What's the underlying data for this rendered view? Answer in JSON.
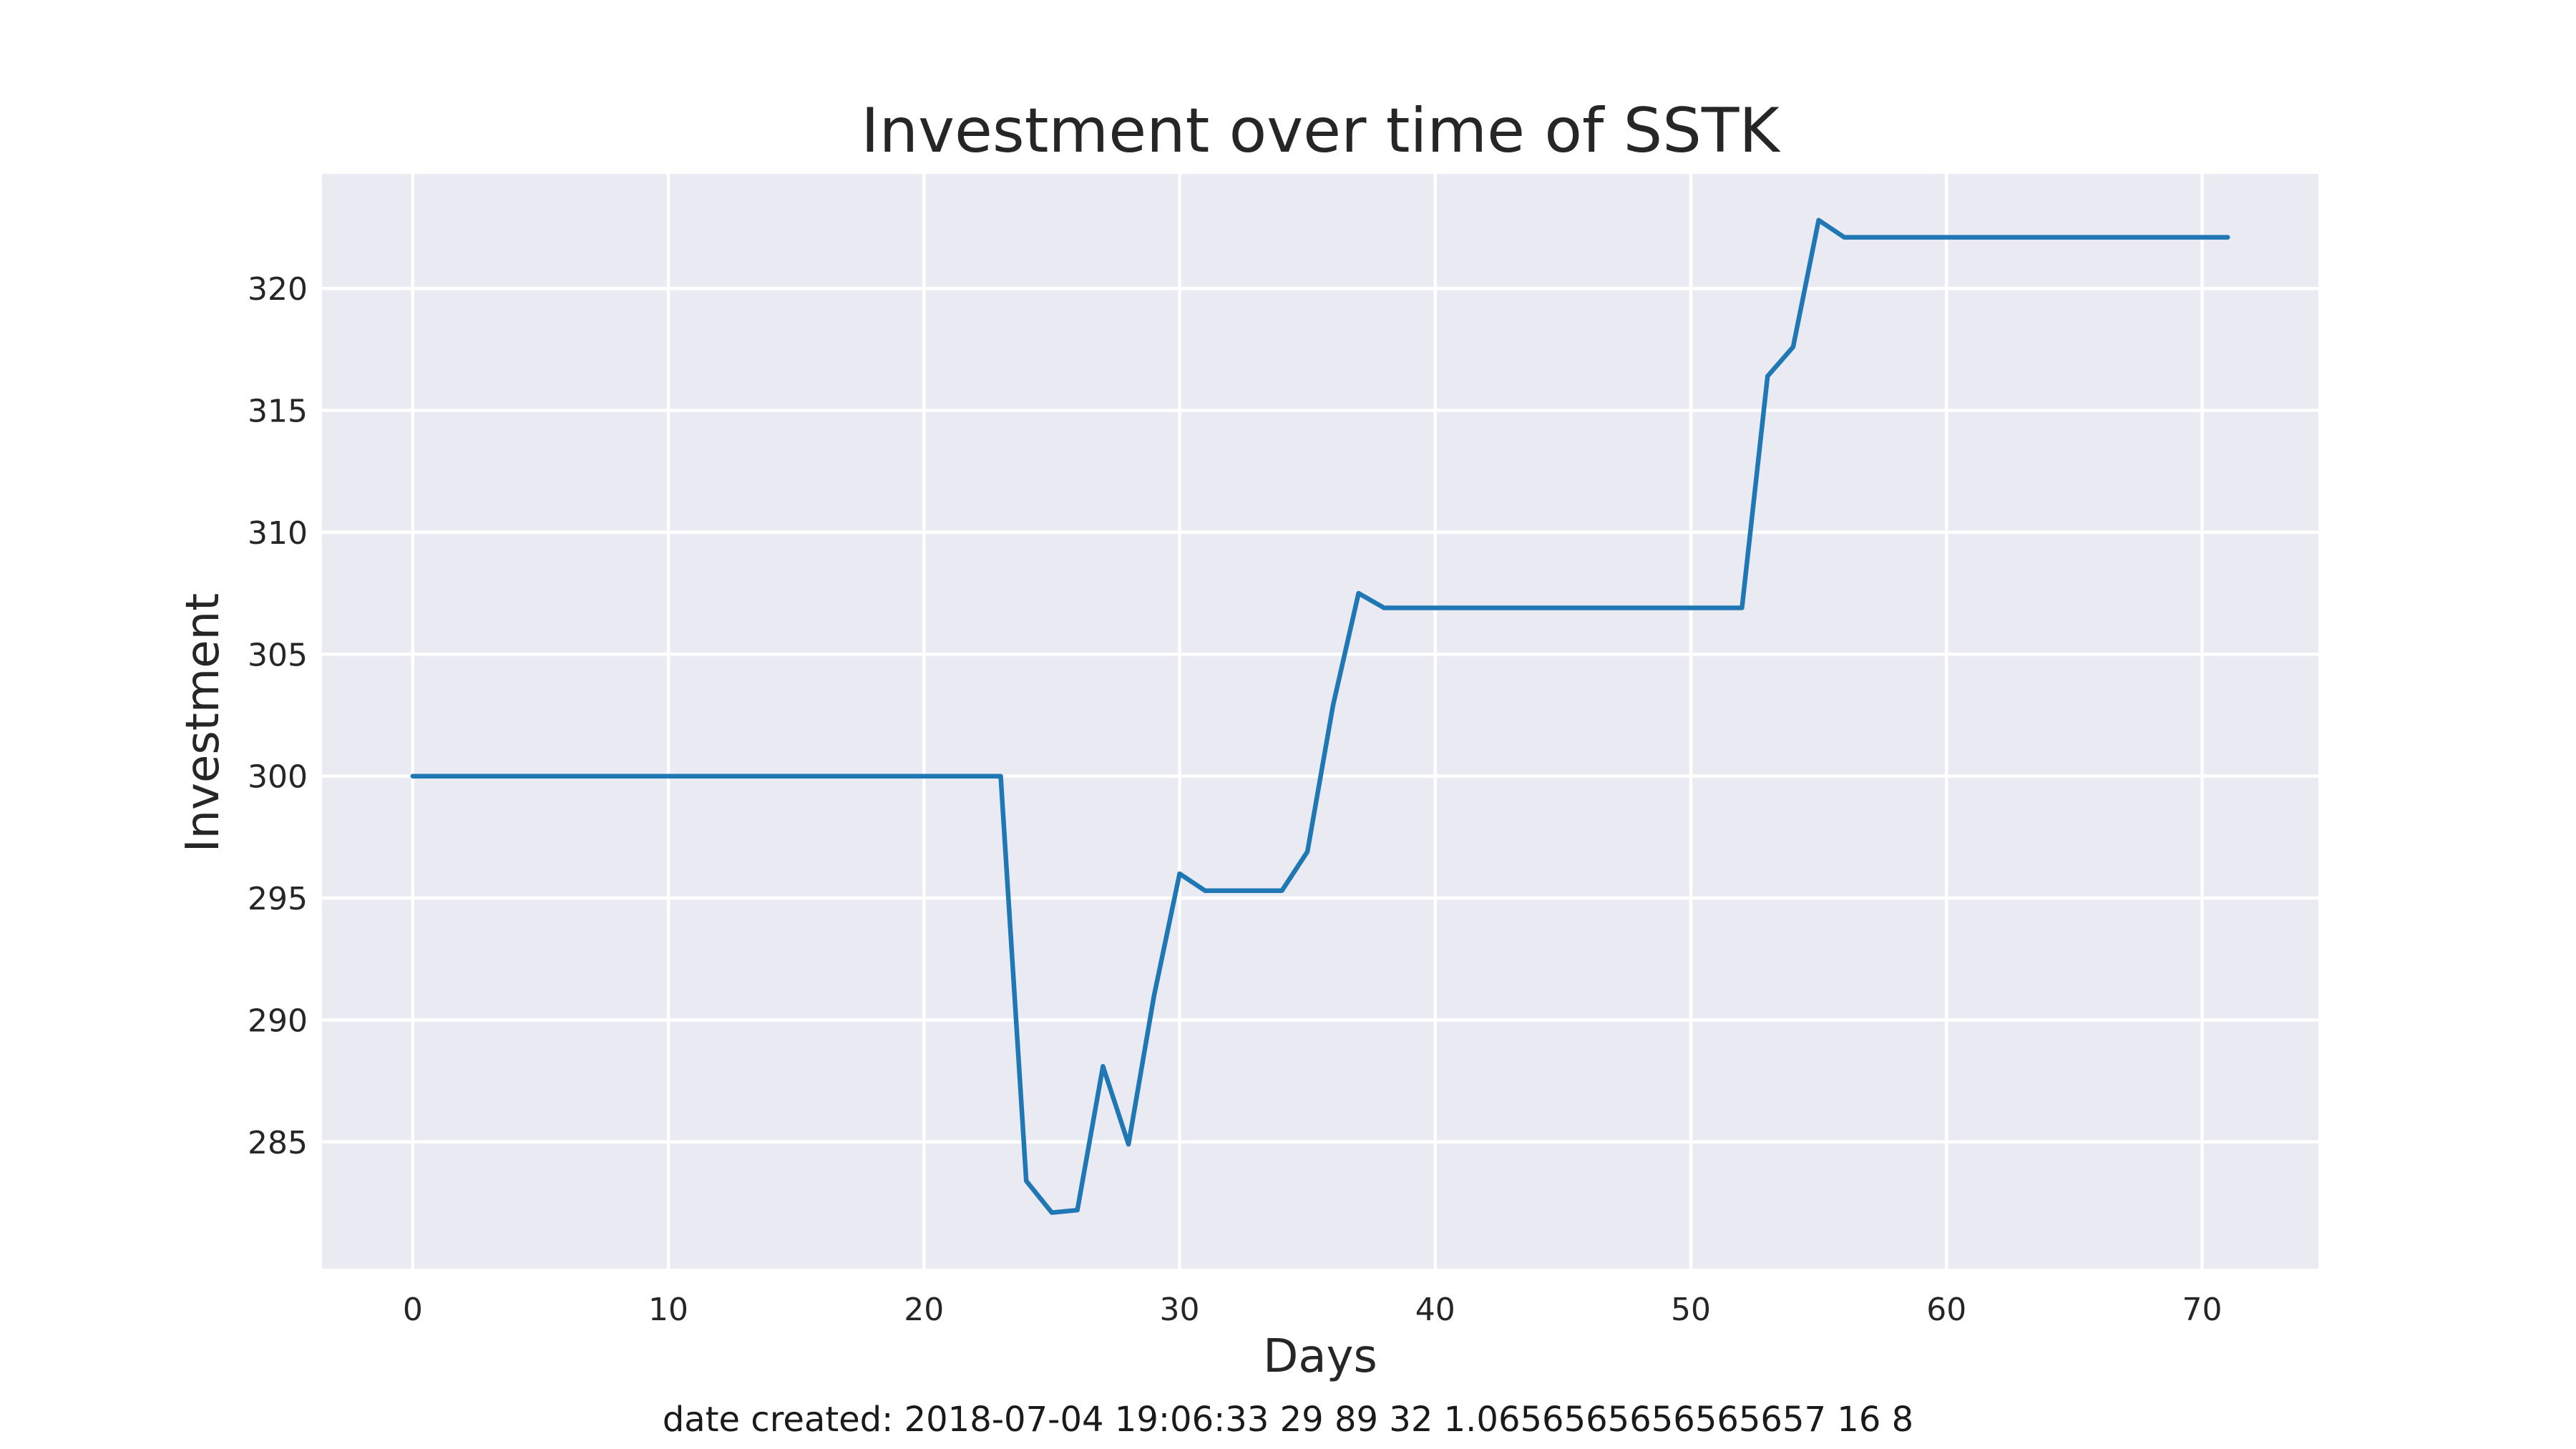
{
  "chart_data": {
    "type": "line",
    "title": "Investment over time of SSTK",
    "xlabel": "Days",
    "ylabel": "Investment",
    "footer": "date created: 2018-07-04 19:06:33 29 89 32 1.0656565656565657 16 8",
    "xlim": [
      -3.55,
      74.55
    ],
    "ylim": [
      279.8,
      324.7
    ],
    "x_ticks": [
      0,
      10,
      20,
      30,
      40,
      50,
      60,
      70
    ],
    "y_ticks": [
      285,
      290,
      295,
      300,
      305,
      310,
      315,
      320
    ],
    "grid": true,
    "legend": "none",
    "series": [
      {
        "color": "#1f77b4",
        "x": [
          0,
          1,
          2,
          3,
          4,
          5,
          6,
          7,
          8,
          9,
          10,
          11,
          12,
          13,
          14,
          15,
          16,
          17,
          18,
          19,
          20,
          21,
          22,
          23,
          24,
          25,
          26,
          27,
          28,
          29,
          30,
          31,
          32,
          33,
          34,
          35,
          36,
          37,
          38,
          39,
          40,
          41,
          42,
          43,
          44,
          45,
          46,
          47,
          48,
          49,
          50,
          51,
          52,
          53,
          54,
          55,
          56,
          57,
          58,
          59,
          60,
          61,
          62,
          63,
          64,
          65,
          66,
          67,
          68,
          69,
          70,
          71
        ],
        "values": [
          300,
          300,
          300,
          300,
          300,
          300,
          300,
          300,
          300,
          300,
          300,
          300,
          300,
          300,
          300,
          300,
          300,
          300,
          300,
          300,
          300,
          300,
          300,
          300,
          283.4,
          282.1,
          282.2,
          288.1,
          284.9,
          291.0,
          296.0,
          295.3,
          295.3,
          295.3,
          295.3,
          296.9,
          302.9,
          307.5,
          306.9,
          306.9,
          306.9,
          306.9,
          306.9,
          306.9,
          306.9,
          306.9,
          306.9,
          306.9,
          306.9,
          306.9,
          306.9,
          306.9,
          306.9,
          316.4,
          317.6,
          322.8,
          322.1,
          322.1,
          322.1,
          322.1,
          322.1,
          322.1,
          322.1,
          322.1,
          322.1,
          322.1,
          322.1,
          322.1,
          322.1,
          322.1,
          322.1,
          322.1
        ]
      }
    ]
  },
  "colors": {
    "plot_background": "#eaeaf2",
    "grid": "#ffffff",
    "line": "#1f77b4"
  }
}
